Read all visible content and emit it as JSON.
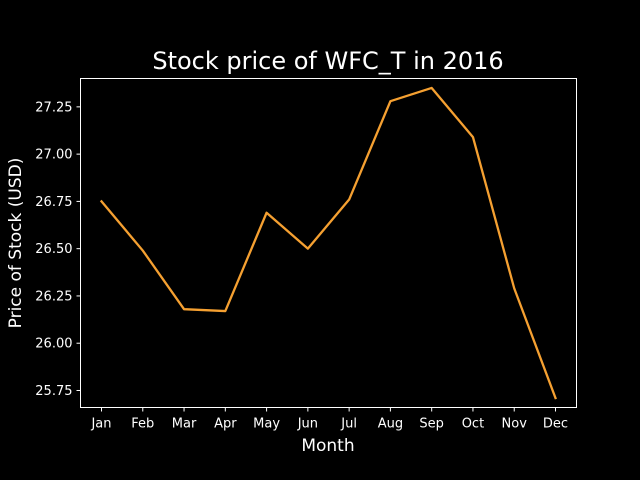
{
  "chart_data": {
    "type": "line",
    "title": "Stock price of WFC_T in 2016",
    "xlabel": "Month",
    "ylabel": "Price of Stock (USD)",
    "categories": [
      "Jan",
      "Feb",
      "Mar",
      "Apr",
      "May",
      "Jun",
      "Jul",
      "Aug",
      "Sep",
      "Oct",
      "Nov",
      "Dec"
    ],
    "series": [
      {
        "values": [
          26.75,
          26.49,
          26.18,
          26.17,
          26.69,
          26.5,
          26.76,
          27.28,
          27.35,
          27.09,
          26.29,
          25.71
        ]
      }
    ],
    "ylim": [
      25.66,
      27.4
    ],
    "yticks": [
      "25.75",
      "26.00",
      "26.25",
      "26.50",
      "26.75",
      "27.00",
      "27.25"
    ],
    "grid": false,
    "legend": "none",
    "colors": {
      "background": "#000000",
      "axes": "#ffffff",
      "line": "#f5a031",
      "text": "#ffffff"
    }
  }
}
